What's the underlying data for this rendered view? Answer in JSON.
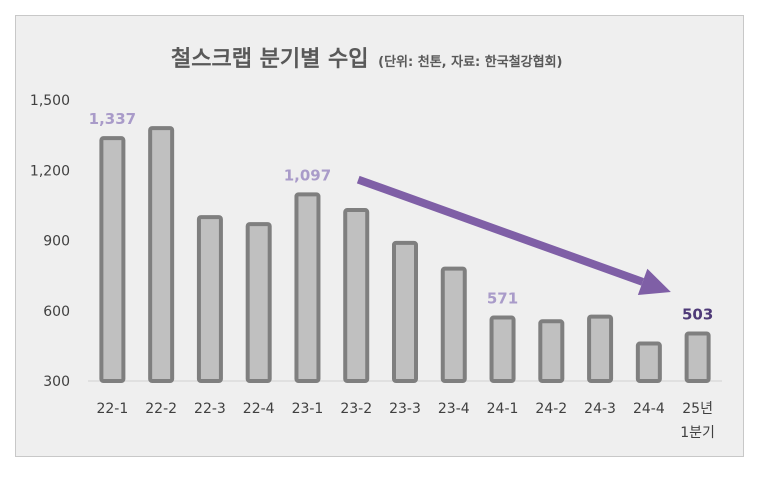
{
  "chart_data": {
    "type": "bar",
    "title": "철스크랩 분기별 수입",
    "subtitle": "(단위: 천톤, 자료: 한국철강협회)",
    "categories": [
      [
        "22-1"
      ],
      [
        "22-2"
      ],
      [
        "22-3"
      ],
      [
        "22-4"
      ],
      [
        "23-1"
      ],
      [
        "23-2"
      ],
      [
        "23-3"
      ],
      [
        "23-4"
      ],
      [
        "24-1"
      ],
      [
        "24-2"
      ],
      [
        "24-3"
      ],
      [
        "24-4"
      ],
      [
        "25년",
        "1분기"
      ]
    ],
    "values": [
      1337,
      1380,
      1000,
      970,
      1097,
      1030,
      890,
      780,
      571,
      555,
      575,
      460,
      503
    ],
    "data_labels": [
      {
        "index": 0,
        "text": "1,337",
        "color": "#a99bc9"
      },
      {
        "index": 4,
        "text": "1,097",
        "color": "#a99bc9"
      },
      {
        "index": 8,
        "text": "571",
        "color": "#a99bc9"
      },
      {
        "index": 12,
        "text": "503",
        "color": "#4e3a78"
      }
    ],
    "yticks": [
      "300",
      "600",
      "900",
      "1,200",
      "1,500"
    ],
    "ylim": [
      300,
      1500
    ],
    "trend_arrow": {
      "from_index": 5,
      "from_value": 1160,
      "to_index": 11,
      "to_value": 680,
      "color": "#7f5fa6"
    },
    "bar_fill": "#c0c0c0",
    "bar_stroke": "#7f7f7f",
    "grid": false,
    "legend": "none"
  }
}
